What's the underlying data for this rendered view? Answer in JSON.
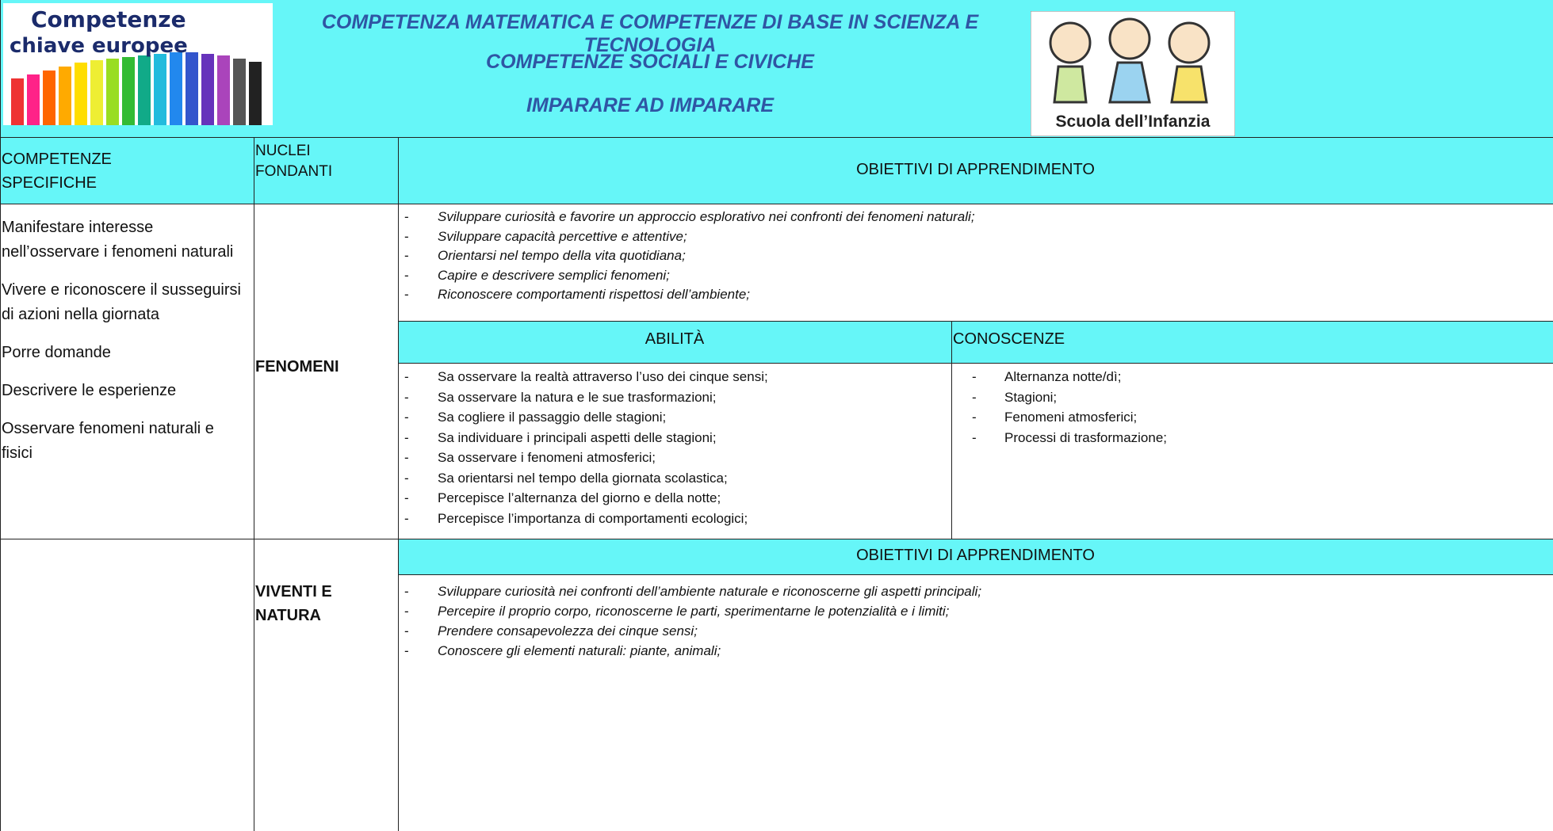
{
  "header": {
    "logo_left": {
      "line1": "Competenze",
      "line2": "chiave europee"
    },
    "titles": [
      "COMPETENZA MATEMATICA E COMPETENZE DI BASE IN SCIENZA E TECNOLOGIA",
      "COMPETENZE SOCIALI E CIVICHE",
      "IMPARARE AD IMPARARE"
    ],
    "logo_right": "Scuola dell’Infanzia"
  },
  "table": {
    "headers": [
      "COMPETENZE SPECIFICHE",
      "NUCLEI FONDANTI",
      "OBIETTIVI DI APPRENDIMENTO"
    ],
    "sections": [
      {
        "competenze": [
          "Manifestare interesse nell’osservare i fenomeni naturali",
          "Vivere e riconoscere il susseguirsi di azioni nella giornata",
          "Porre domande",
          "Descrivere le esperienze",
          "Osservare fenomeni naturali e fisici"
        ],
        "nucleo": "FENOMENI",
        "obiettivi": [
          "Sviluppare curiosità e favorire un approccio esplorativo nei confronti dei fenomeni naturali;",
          "Sviluppare capacità percettive e attentive;",
          "Orientarsi nel tempo della vita quotidiana;",
          "Capire e descrivere semplici fenomeni;",
          "Riconoscere comportamenti rispettosi  dell’ambiente;"
        ],
        "abilita_header": "ABILITÀ",
        "conoscenze_header": "CONOSCENZE",
        "abilita": [
          "Sa osservare la realtà attraverso l’uso dei cinque sensi;",
          "Sa osservare la natura e le sue trasformazioni;",
          "Sa cogliere il passaggio delle stagioni;",
          "Sa individuare i principali aspetti delle stagioni;",
          "Sa osservare i fenomeni atmosferici;",
          "Sa orientarsi nel tempo della giornata scolastica;",
          "Percepisce l’alternanza del giorno e della notte;",
          "Percepisce l’importanza di comportamenti ecologici;"
        ],
        "conoscenze": [
          "Alternanza notte/dì;",
          "Stagioni;",
          "Fenomeni atmosferici;",
          "Processi di trasformazione;"
        ]
      },
      {
        "nucleo": "VIVENTI E NATURA",
        "obiettivi_header": "OBIETTIVI DI APPRENDIMENTO",
        "obiettivi": [
          "Sviluppare curiosità nei confronti dell’ambiente naturale e riconoscerne gli aspetti principali;",
          "Percepire il proprio corpo, riconoscerne le parti, sperimentarne le potenzialità e i limiti;",
          "Prendere consapevolezza dei cinque sensi;",
          "Conoscere gli elementi naturali: piante, animali;"
        ]
      }
    ]
  }
}
